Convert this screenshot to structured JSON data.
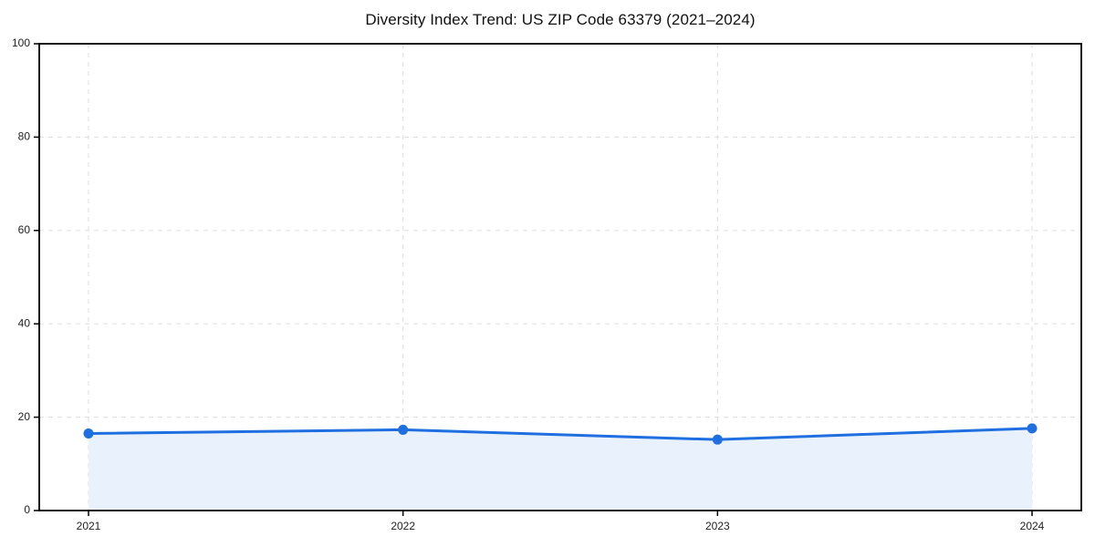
{
  "chart_data": {
    "type": "line",
    "title": "Diversity Index Trend: US ZIP Code 63379 (2021–2024)",
    "x": [
      2021,
      2022,
      2023,
      2024
    ],
    "series": [
      {
        "name": "Diversity Index",
        "values": [
          16.5,
          17.3,
          15.2,
          17.6
        ]
      }
    ],
    "xlabel": "",
    "ylabel": "",
    "ylim": [
      0,
      100
    ],
    "yticks": [
      0,
      20,
      40,
      60,
      80,
      100
    ],
    "xticks": [
      "2021",
      "2022",
      "2023",
      "2024"
    ],
    "grid": "dashed",
    "legend_position": "none",
    "area_fill": true,
    "colors": {
      "line": "#1f6fe0",
      "marker": "#1f6fe0",
      "fill": "#e8f1fc",
      "grid": "#e2e2e2",
      "axis": "#000000",
      "tick_label": "#222222",
      "title": "#111111",
      "background": "#ffffff"
    }
  }
}
